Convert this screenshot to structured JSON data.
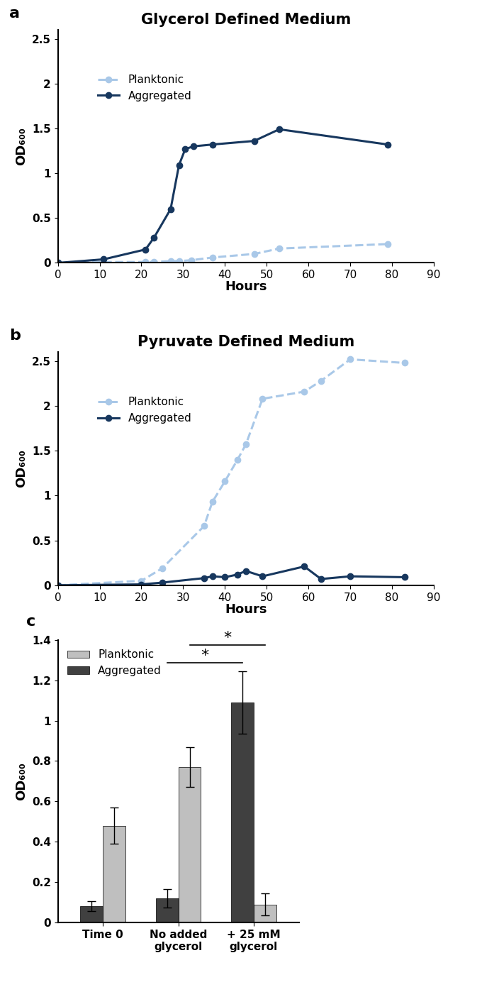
{
  "chart_data": [
    {
      "type": "line",
      "panel": "a",
      "title": "Glycerol Defined Medium",
      "x_label": "Hours",
      "y_label": "OD₆₀₀",
      "xlim": [
        0,
        90
      ],
      "xticks": [
        0,
        10,
        20,
        30,
        40,
        50,
        60,
        70,
        80,
        90
      ],
      "ylim": [
        0,
        2.6
      ],
      "yticks": [
        0,
        0.5,
        1,
        1.5,
        2,
        2.5
      ],
      "legend": "upper left",
      "grid": false,
      "series": [
        {
          "name": "Planktonic",
          "color": "#a9c8e8",
          "line_style": "dashed",
          "marker": "o",
          "x": [
            0,
            11,
            21,
            23,
            27,
            29,
            32,
            37,
            47,
            53,
            79
          ],
          "values": [
            0,
            0.01,
            0.01,
            0.01,
            0.02,
            0.02,
            0.03,
            0.06,
            0.1,
            0.16,
            0.21
          ]
        },
        {
          "name": "Aggregated",
          "color": "#17375e",
          "line_style": "solid",
          "marker": "o",
          "x": [
            0,
            11,
            21,
            23,
            27,
            29,
            30.5,
            32.5,
            37,
            47,
            53,
            79
          ],
          "values": [
            0,
            0.04,
            0.15,
            0.28,
            0.6,
            1.09,
            1.27,
            1.3,
            1.32,
            1.36,
            1.49,
            1.32
          ]
        }
      ]
    },
    {
      "type": "line",
      "panel": "b",
      "title": "Pyruvate Defined Medium",
      "x_label": "Hours",
      "y_label": "OD₆₀₀",
      "xlim": [
        0,
        90
      ],
      "xticks": [
        0,
        10,
        20,
        30,
        40,
        50,
        60,
        70,
        80,
        90
      ],
      "ylim": [
        0,
        2.6
      ],
      "yticks": [
        0,
        0.5,
        1,
        1.5,
        2,
        2.5
      ],
      "legend": "upper left",
      "grid": false,
      "series": [
        {
          "name": "Planktonic",
          "color": "#a9c8e8",
          "line_style": "dashed",
          "marker": "o",
          "x": [
            0,
            20,
            25,
            35,
            37,
            40,
            43,
            45,
            49,
            59,
            63,
            70,
            83
          ],
          "values": [
            0,
            0.05,
            0.19,
            0.66,
            0.93,
            1.16,
            1.4,
            1.57,
            2.08,
            2.16,
            2.28,
            2.52,
            2.48
          ]
        },
        {
          "name": "Aggregated",
          "color": "#17375e",
          "line_style": "solid",
          "marker": "o",
          "x": [
            0,
            20,
            25,
            35,
            37,
            40,
            43,
            45,
            49,
            59,
            63,
            70,
            83
          ],
          "values": [
            0,
            0.01,
            0.03,
            0.08,
            0.1,
            0.09,
            0.12,
            0.16,
            0.1,
            0.21,
            0.07,
            0.1,
            0.09
          ]
        }
      ]
    },
    {
      "type": "bar",
      "panel": "c",
      "y_label": "OD₆₀₀",
      "categories": [
        "Time 0",
        "No added\nglycerol",
        "+ 25 mM\nglycerol"
      ],
      "ylim": [
        0,
        1.4
      ],
      "yticks": [
        0,
        0.2,
        0.4,
        0.6,
        0.8,
        1,
        1.2,
        1.4
      ],
      "legend": "upper left",
      "grid": false,
      "series": [
        {
          "name": "Planktonic",
          "color": "#bfbfbf",
          "values": [
            0.48,
            0.77,
            0.09
          ],
          "errors": [
            0.09,
            0.1,
            0.055
          ]
        },
        {
          "name": "Aggregated",
          "color": "#404040",
          "values": [
            0.08,
            0.12,
            1.09
          ],
          "errors": [
            0.025,
            0.045,
            0.155
          ]
        }
      ],
      "comparisons": [
        {
          "series": "Aggregated",
          "categories": [
            1,
            2
          ],
          "label": "*"
        },
        {
          "series": "Planktonic",
          "categories": [
            1,
            2
          ],
          "label": "*"
        }
      ]
    }
  ]
}
